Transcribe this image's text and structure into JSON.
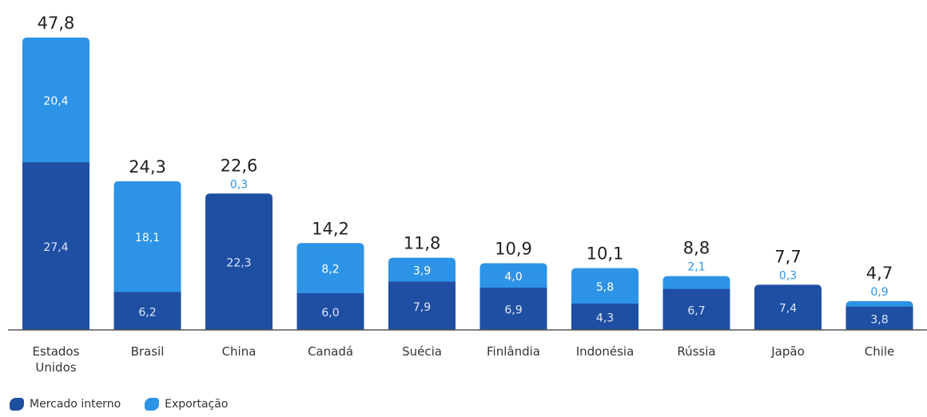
{
  "chart_data": {
    "type": "bar",
    "stacked": true,
    "categories": [
      "Estados\nUnidos",
      "Brasil",
      "China",
      "Canadá",
      "Suécia",
      "Finlândia",
      "Indonésia",
      "Rússia",
      "Japão",
      "Chile"
    ],
    "totals": [
      "47,8",
      "24,3",
      "22,6",
      "14,2",
      "11,8",
      "10,9",
      "10,1",
      "8,8",
      "7,7",
      "4,7"
    ],
    "series": [
      {
        "name": "Mercado interno",
        "color": "#1f4fa3",
        "values": [
          27.4,
          6.2,
          22.3,
          6.0,
          7.9,
          6.9,
          4.3,
          6.7,
          7.4,
          3.8
        ],
        "labels": [
          "27,4",
          "6,2",
          "22,3",
          "6,0",
          "7,9",
          "6,9",
          "4,3",
          "6,7",
          "7,4",
          "3,8"
        ]
      },
      {
        "name": "Exportação",
        "color": "#2d93e6",
        "values": [
          20.4,
          18.1,
          0.3,
          8.2,
          3.9,
          4.0,
          5.8,
          2.1,
          0.3,
          0.9
        ],
        "labels": [
          "20,4",
          "18,1",
          "0,3",
          "8,2",
          "3,9",
          "4,0",
          "5,8",
          "2,1",
          "0,3",
          "0,9"
        ]
      }
    ],
    "ylim": [
      0,
      47.8
    ],
    "grid": false,
    "legend_position": "bottom-left"
  }
}
